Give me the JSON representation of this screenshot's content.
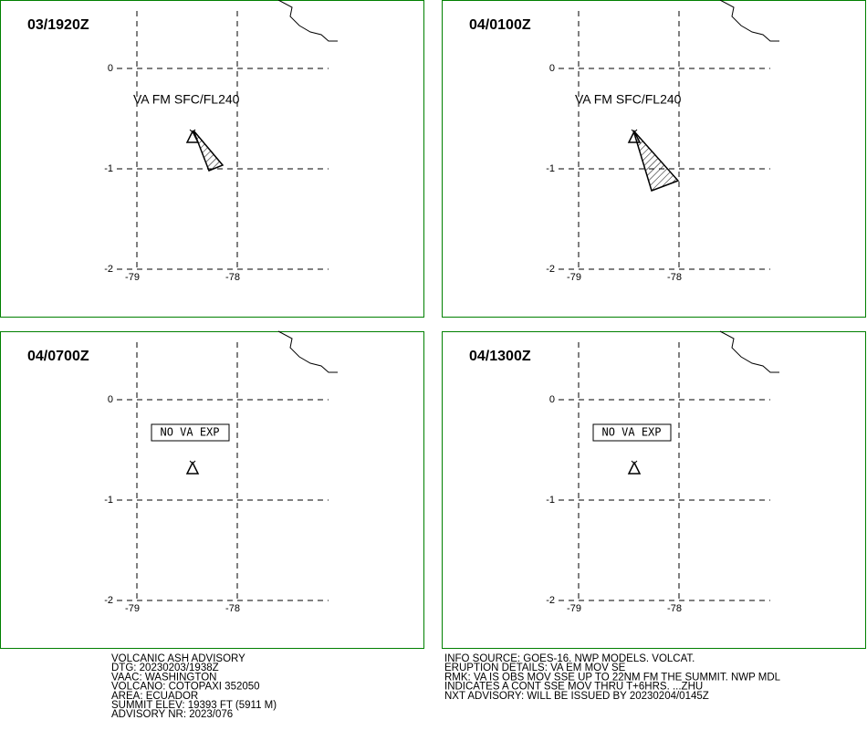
{
  "panels": [
    {
      "time": "03/1920Z",
      "label": "VA FM SFC/FL240"
    },
    {
      "time": "04/0100Z",
      "label": "VA FM SFC/FL240"
    },
    {
      "time": "04/0700Z",
      "label": "NO VA EXP"
    },
    {
      "time": "04/1300Z",
      "label": "NO VA EXP"
    }
  ],
  "lat_ticks": [
    0,
    -1,
    -2
  ],
  "lon_ticks": [
    -79,
    -78
  ],
  "advisory_left": [
    "VOLCANIC ASH ADVISORY",
    "DTG: 20230203/1938Z",
    "VAAC: WASHINGTON",
    "VOLCANO: COTOPAXI 352050",
    "AREA: ECUADOR",
    "SUMMIT ELEV: 19393 FT (5911 M)",
    "ADVISORY NR: 2023/076"
  ],
  "advisory_right": [
    "INFO SOURCE: GOES-16. NWP MODELS. VOLCAT.",
    "ERUPTION DETAILS: VA EM MOV SE",
    "RMK: VA IS OBS MOV SSE UP TO 22NM FM THE SUMMIT. NWP MDL",
    "INDICATES A CONT SSE MOV THRU T+6HRS. ...ZHU",
    "NXT ADVISORY: WILL BE ISSUED BY 20230204/0145Z"
  ]
}
